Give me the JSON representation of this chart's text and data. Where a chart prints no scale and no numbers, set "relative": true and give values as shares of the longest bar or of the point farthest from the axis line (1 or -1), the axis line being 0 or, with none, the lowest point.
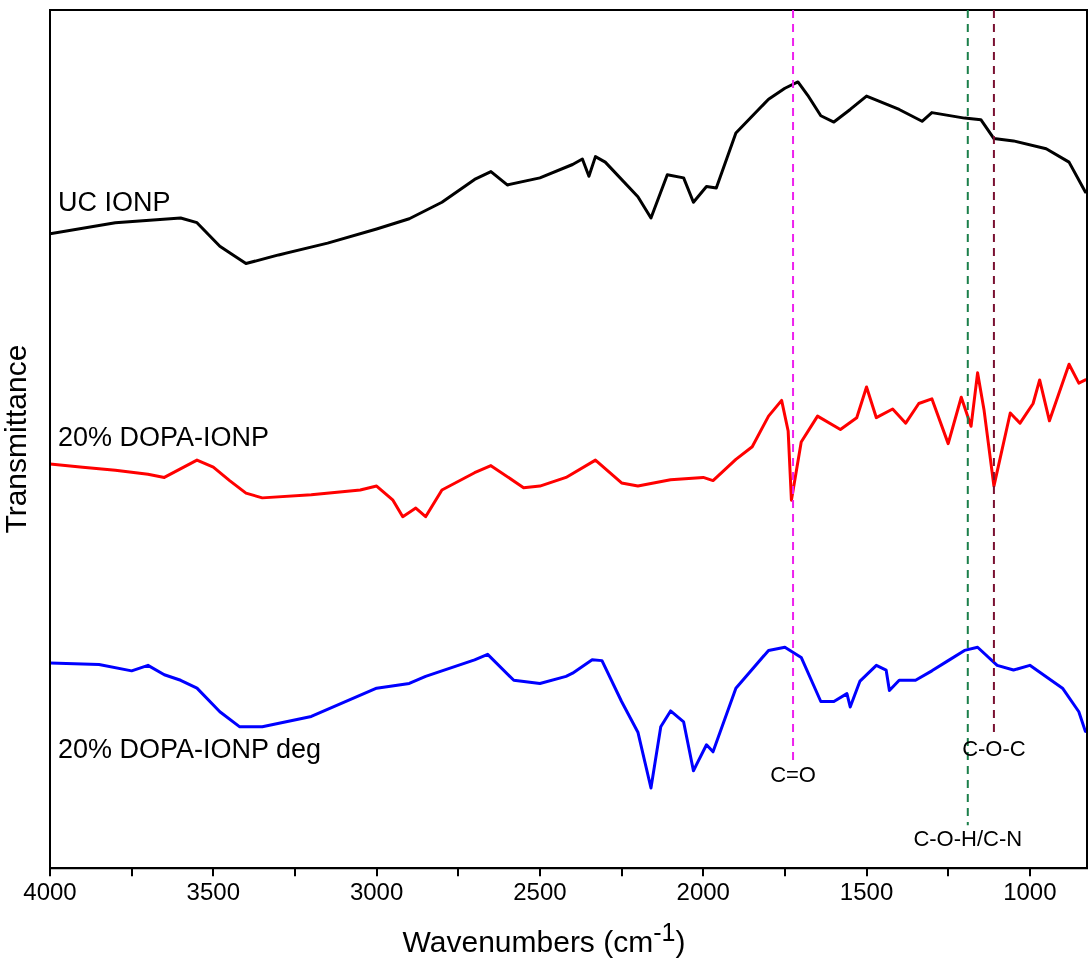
{
  "chart_data": {
    "type": "line",
    "relative": true,
    "xlabel": "Wavenumbers (cm$^{-1}$)",
    "ylabel": "Transmittance",
    "xlim": [
      4000,
      825
    ],
    "xticks": [
      4000,
      {
        "value": 3750,
        "label": null
      },
      3500,
      {
        "value": 3250,
        "label": null
      },
      3000,
      {
        "value": 2750,
        "label": null
      },
      2500,
      {
        "value": 2250,
        "label": null
      },
      2000,
      {
        "value": 1750,
        "label": null
      },
      1500,
      {
        "value": 1250,
        "label": null
      },
      1000
    ],
    "tick_labels": "x",
    "grid": false,
    "legend": false,
    "marker": "none",
    "line_style": "solid",
    "x": [
      4000,
      3800,
      3600,
      3550,
      3480,
      3400,
      3300,
      3150,
      3000,
      2900,
      2800,
      2700,
      2650,
      2600,
      2500,
      2400,
      2370,
      2350,
      2330,
      2300,
      2200,
      2160,
      2110,
      2060,
      2030,
      1990,
      1960,
      1900,
      1800,
      1750,
      1710,
      1680,
      1640,
      1600,
      1550,
      1500,
      1400,
      1330,
      1300,
      1200,
      1150,
      1110,
      1050,
      950,
      880,
      830
    ],
    "series": [
      {
        "name": "UC IONP",
        "color": "#000000",
        "values": [
          0.807,
          0.821,
          0.827,
          0.821,
          0.791,
          0.769,
          0.78,
          0.795,
          0.813,
          0.826,
          0.847,
          0.876,
          0.886,
          0.869,
          0.878,
          0.895,
          0.902,
          0.88,
          0.905,
          0.898,
          0.854,
          0.827,
          0.882,
          0.878,
          0.847,
          0.867,
          0.865,
          0.935,
          0.978,
          0.992,
          1,
          0.983,
          0.957,
          0.949,
          0.965,
          0.982,
          0.965,
          0.95,
          0.961,
          0.954,
          0.952,
          0.928,
          0.925,
          0.915,
          0.898,
          0.86
        ]
      },
      {
        "name": "20% DOPA-IONP",
        "color": "#ff0000",
        "x": [
          4000,
          3900,
          3800,
          3700,
          3650,
          3550,
          3500,
          3450,
          3400,
          3350,
          3200,
          3050,
          3000,
          2950,
          2920,
          2880,
          2850,
          2800,
          2700,
          2650,
          2550,
          2500,
          2420,
          2330,
          2250,
          2200,
          2100,
          2000,
          1970,
          1900,
          1850,
          1800,
          1760,
          1740,
          1730,
          1700,
          1650,
          1580,
          1530,
          1500,
          1470,
          1420,
          1380,
          1340,
          1300,
          1250,
          1210,
          1180,
          1160,
          1140,
          1110,
          1060,
          1030,
          990,
          970,
          940,
          880,
          850,
          830
        ],
        "values": [
          0.514,
          0.51,
          0.506,
          0.501,
          0.497,
          0.519,
          0.51,
          0.493,
          0.477,
          0.471,
          0.475,
          0.481,
          0.486,
          0.468,
          0.447,
          0.458,
          0.447,
          0.481,
          0.503,
          0.512,
          0.484,
          0.486,
          0.497,
          0.519,
          0.49,
          0.486,
          0.494,
          0.497,
          0.493,
          0.52,
          0.536,
          0.575,
          0.595,
          0.556,
          0.468,
          0.542,
          0.575,
          0.558,
          0.573,
          0.612,
          0.573,
          0.584,
          0.566,
          0.591,
          0.597,
          0.54,
          0.599,
          0.562,
          0.63,
          0.582,
          0.486,
          0.579,
          0.566,
          0.591,
          0.621,
          0.569,
          0.641,
          0.617,
          0.621
        ]
      },
      {
        "name": "20% DOPA-IONP deg",
        "color": "#0000ff",
        "x": [
          4000,
          3850,
          3750,
          3700,
          3650,
          3600,
          3550,
          3480,
          3420,
          3350,
          3200,
          3000,
          2900,
          2850,
          2700,
          2660,
          2580,
          2500,
          2420,
          2400,
          2340,
          2310,
          2250,
          2200,
          2160,
          2130,
          2100,
          2060,
          2030,
          1990,
          1970,
          1900,
          1800,
          1750,
          1700,
          1640,
          1600,
          1560,
          1550,
          1520,
          1470,
          1440,
          1430,
          1400,
          1350,
          1300,
          1250,
          1200,
          1160,
          1100,
          1050,
          1000,
          900,
          850,
          830
        ],
        "values": [
          0.261,
          0.259,
          0.251,
          0.258,
          0.246,
          0.239,
          0.229,
          0.199,
          0.18,
          0.18,
          0.193,
          0.229,
          0.235,
          0.244,
          0.265,
          0.272,
          0.239,
          0.235,
          0.244,
          0.248,
          0.265,
          0.264,
          0.212,
          0.173,
          0.102,
          0.18,
          0.2,
          0.186,
          0.124,
          0.157,
          0.148,
          0.229,
          0.277,
          0.281,
          0.268,
          0.212,
          0.212,
          0.222,
          0.205,
          0.238,
          0.258,
          0.252,
          0.226,
          0.239,
          0.239,
          0.251,
          0.264,
          0.277,
          0.281,
          0.258,
          0.252,
          0.258,
          0.229,
          0.199,
          0.174
        ]
      }
    ],
    "ref_lines": [
      {
        "axis": "x",
        "value": 1725,
        "label": "C=O",
        "color": "#ee22ee",
        "line_style": "dashed"
      },
      {
        "axis": "x",
        "value": 1190,
        "label": "C-O-H/C-N",
        "color": "#1b7f4a",
        "line_style": "dashed"
      },
      {
        "axis": "x",
        "value": 1110,
        "label": "C-O-C",
        "color": "#7a1030",
        "line_style": "dashed"
      }
    ]
  }
}
